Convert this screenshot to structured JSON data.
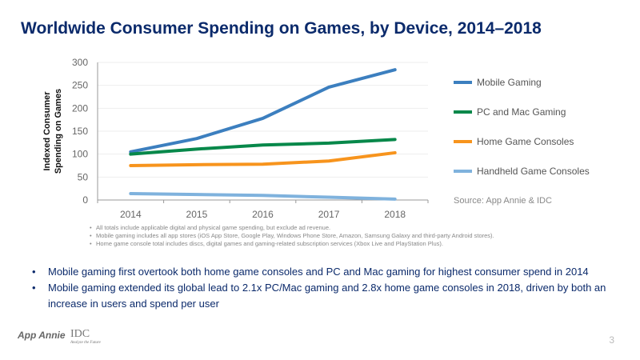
{
  "title": "Worldwide Consumer Spending on Games, by Device, 2014–2018",
  "chart_data": {
    "type": "line",
    "title": "Worldwide Consumer Spending on Games, by Device, 2014–2018",
    "xlabel": "",
    "ylabel": "Indexed Consumer Spending on Games",
    "categories": [
      "2014",
      "2015",
      "2016",
      "2017",
      "2018"
    ],
    "ylim": [
      0,
      300
    ],
    "yticks": [
      0,
      50,
      100,
      150,
      200,
      250,
      300
    ],
    "grid": true,
    "legend": "right",
    "series": [
      {
        "name": "Mobile Gaming",
        "color": "#3c7fbf",
        "values": [
          105,
          134,
          178,
          246,
          284
        ]
      },
      {
        "name": "PC and Mac Gaming",
        "color": "#07884a",
        "values": [
          100,
          111,
          120,
          124,
          132
        ]
      },
      {
        "name": "Home Game Consoles",
        "color": "#f7941d",
        "values": [
          75,
          77,
          78,
          85,
          103
        ]
      },
      {
        "name": "Handheld Game Consoles",
        "color": "#7fb2dd",
        "values": [
          14,
          12,
          10,
          6,
          2
        ]
      }
    ],
    "source": "Source: App Annie & IDC"
  },
  "footnotes": [
    "All totals include applicable digital and physical game spending, but exclude ad revenue.",
    "Mobile gaming includes all app stores (iOS App Store, Google Play, Windows Phone Store, Amazon, Samsung Galaxy and third-party Android stores).",
    "Home game console total includes discs, digital games and gaming-related subscription services (Xbox Live and PlayStation Plus)."
  ],
  "bullets": [
    "Mobile gaming first overtook both home game consoles and PC and Mac gaming for highest consumer spend in 2014",
    "Mobile gaming extended its global lead to 2.1x PC/Mac gaming and 2.8x home game consoles in 2018, driven by both an increase in users and spend per user"
  ],
  "logos": {
    "app_annie": "App Annie",
    "idc": "IDC",
    "idc_tagline": "Analyze the Future"
  },
  "page_number": "3"
}
